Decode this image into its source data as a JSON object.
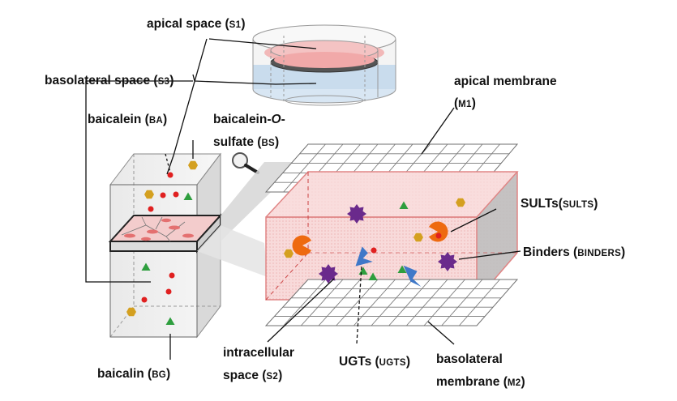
{
  "labels": {
    "apical_space": {
      "main": "apical space (",
      "abbr": "S1",
      "close": ")"
    },
    "basolateral_space": {
      "main": "basolateral space (",
      "abbr": "S3",
      "close": ")"
    },
    "apical_membrane": {
      "line1": "apical membrane",
      "open": "(",
      "abbr": "M1",
      "close": ")"
    },
    "baicalein": {
      "main": "baicalein (",
      "abbr": "BA",
      "close": ")"
    },
    "baicalein_sulfate": {
      "line1_a": "baicalein-",
      "line1_b": "O",
      "line1_c": "-",
      "line2_a": "sulfate (",
      "abbr": "BS",
      "close": ")"
    },
    "sults": {
      "main": "SULTs(",
      "abbr": "SULTS",
      "close": ")"
    },
    "binders": {
      "main": "Binders (",
      "abbr": "BINDERS",
      "close": ")"
    },
    "intracellular": {
      "line1": "intracellular",
      "line2_a": "space (",
      "abbr": "S2",
      "close": ")"
    },
    "ugts": {
      "main": "UGTs (",
      "abbr": "UGTS",
      "close": ")"
    },
    "basolateral_membrane": {
      "line1": "basolateral",
      "line2_a": "membrane (",
      "abbr": "M2",
      "close": ")"
    },
    "baicalin": {
      "main": "baicalin (",
      "abbr": "BG",
      "close": ")"
    }
  },
  "colors": {
    "cell_fill": "#f6d3d3",
    "cell_stroke": "#e08585",
    "baicalein_dot": "#e02020",
    "baicalein_sulfate_hex": "#d4a020",
    "baicalin_triangle": "#2e9e3e",
    "binder_star": "#6a2a8c",
    "sult_pacman": "#ee6a10",
    "ugt_shape": "#3f78c8",
    "grid": "#7a7a7a",
    "culture_insert_pink": "#f1a9a9",
    "culture_insert_blue": "#c9dced"
  }
}
